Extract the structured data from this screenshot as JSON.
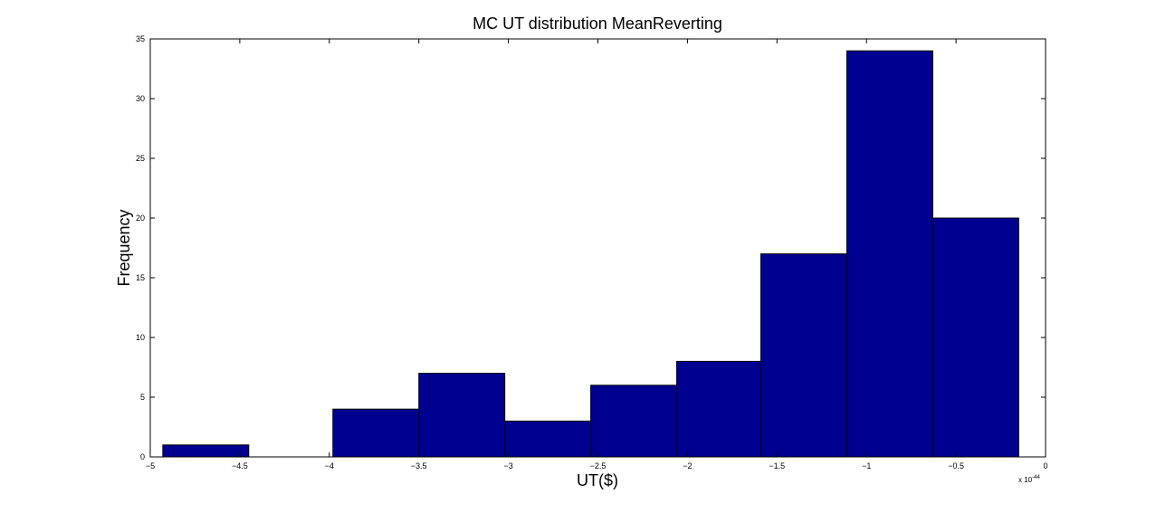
{
  "chart_data": {
    "type": "bar",
    "title": "MC UT distribution MeanReverting",
    "xlabel": "UT($)",
    "ylabel": "Frequency",
    "x_multiplier": "x 10",
    "x_exponent": "-44",
    "xlim": [
      -5,
      0
    ],
    "ylim": [
      0,
      35
    ],
    "xticks": [
      -5,
      -4.5,
      -4,
      -3.5,
      -3,
      -2.5,
      -2,
      -1.5,
      -1,
      -0.5,
      0
    ],
    "xtick_labels": [
      "−5",
      "−4.5",
      "−4",
      "−3.5",
      "−3",
      "−2.5",
      "−2",
      "−1.5",
      "−1",
      "−0.5",
      "0"
    ],
    "yticks": [
      0,
      5,
      10,
      15,
      20,
      25,
      30,
      35
    ],
    "ytick_labels": [
      "0",
      "5",
      "10",
      "15",
      "20",
      "25",
      "30",
      "35"
    ],
    "bins": [
      {
        "x0": -4.93,
        "x1": -4.45,
        "value": 1
      },
      {
        "x0": -4.45,
        "x1": -3.98,
        "value": 0
      },
      {
        "x0": -3.98,
        "x1": -3.5,
        "value": 4
      },
      {
        "x0": -3.5,
        "x1": -3.02,
        "value": 7
      },
      {
        "x0": -3.02,
        "x1": -2.54,
        "value": 3
      },
      {
        "x0": -2.54,
        "x1": -2.06,
        "value": 6
      },
      {
        "x0": -2.06,
        "x1": -1.59,
        "value": 8
      },
      {
        "x0": -1.59,
        "x1": -1.11,
        "value": 17
      },
      {
        "x0": -1.11,
        "x1": -0.63,
        "value": 34
      },
      {
        "x0": -0.63,
        "x1": -0.15,
        "value": 20
      }
    ],
    "bar_color": "#000090",
    "grid": false
  }
}
